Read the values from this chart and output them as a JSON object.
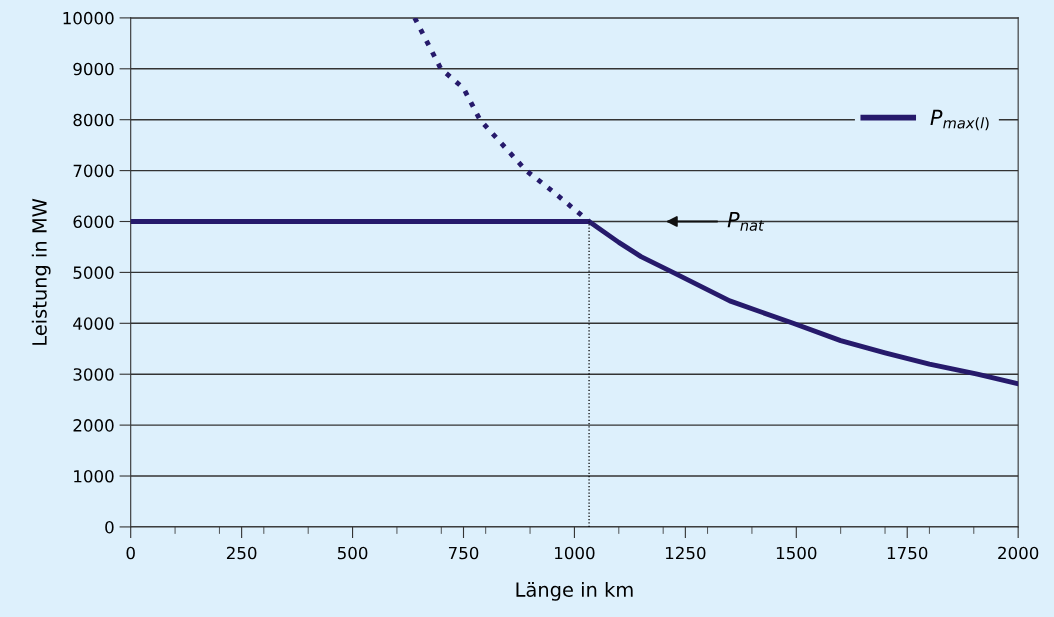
{
  "chart_data": {
    "type": "line",
    "xlabel": "Länge in km",
    "ylabel": "Leistung in MW",
    "xlim": [
      0,
      2000
    ],
    "ylim": [
      0,
      10000
    ],
    "xticks": [
      0,
      {
        "value": 100,
        "label": null
      },
      {
        "value": 200,
        "label": null
      },
      250,
      {
        "value": 300,
        "label": null
      },
      {
        "value": 400,
        "label": null
      },
      500,
      {
        "value": 600,
        "label": null
      },
      {
        "value": 700,
        "label": null
      },
      750,
      {
        "value": 800,
        "label": null
      },
      {
        "value": 900,
        "label": null
      },
      1000,
      {
        "value": 1100,
        "label": null
      },
      {
        "value": 1200,
        "label": null
      },
      1250,
      {
        "value": 1300,
        "label": null
      },
      {
        "value": 1400,
        "label": null
      },
      1500,
      {
        "value": 1600,
        "label": null
      },
      {
        "value": 1700,
        "label": null
      },
      1750,
      {
        "value": 1800,
        "label": null
      },
      {
        "value": 1900,
        "label": null
      },
      2000
    ],
    "yticks": [
      0,
      1000,
      2000,
      3000,
      4000,
      5000,
      6000,
      7000,
      8000,
      9000,
      10000
    ],
    "grid": "y",
    "legend": "right",
    "marker": "none",
    "series": [
      {
        "name": "P$_{max(l)}$",
        "color": "#261a6b",
        "line_style": "solid",
        "x": [
          0,
          1033,
          1100,
          1150,
          1222,
          1350,
          1493,
          1600,
          1700,
          1800,
          1908,
          2000
        ],
        "values": [
          6000,
          6000,
          5590,
          5310,
          5000,
          4440,
          4000,
          3660,
          3420,
          3200,
          3000,
          2810
        ]
      },
      {
        "color": "#261a6b",
        "line_style": "dotted",
        "x": [
          640,
          699,
          750,
          787,
          891,
          950,
          1033
        ],
        "values": [
          10000,
          9000,
          8620,
          8000,
          7000,
          6600,
          6000
        ]
      },
      {
        "color": "#000000",
        "line_style": "dotted",
        "x": [
          1033,
          1033
        ],
        "values": [
          0,
          6000
        ]
      }
    ],
    "annotations": [
      "P$_{nat}$"
    ]
  }
}
